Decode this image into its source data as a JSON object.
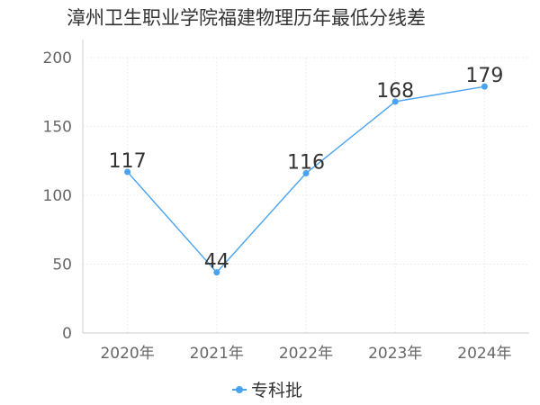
{
  "chart_data": {
    "type": "line",
    "title": "漳州卫生职业学院福建物理历年最低分线差",
    "categories": [
      "2020年",
      "2021年",
      "2022年",
      "2023年",
      "2024年"
    ],
    "series": [
      {
        "name": "专科批",
        "values": [
          117,
          44,
          116,
          168,
          179
        ]
      }
    ],
    "ylim": [
      0,
      200
    ],
    "yticks": [
      0,
      50,
      100,
      150,
      200
    ],
    "grid": true,
    "legend_position": "bottom",
    "colors": {
      "series": "#4aa3f0",
      "grid": "#eeeeee",
      "axis": "#cccccc"
    }
  }
}
